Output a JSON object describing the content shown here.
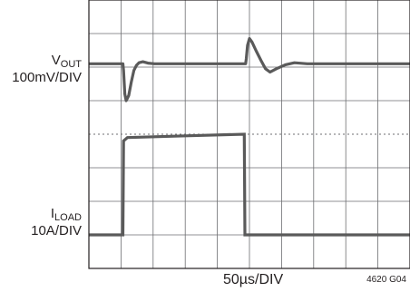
{
  "chart_data": {
    "type": "line",
    "title": "",
    "xlabel": "50µs/DIV",
    "figure_id": "4620 G04",
    "x_divisions": 10,
    "y_divisions": 8,
    "grid": true,
    "x_unit": "µs",
    "time_per_div_us": 50,
    "x_range_us": [
      0,
      500
    ],
    "channels": [
      {
        "name": "V",
        "subscript": "OUT",
        "scale": "100mV/DIV",
        "ac_coupled": true,
        "points_us_mV": [
          [
            0,
            0
          ],
          [
            53,
            0
          ],
          [
            54,
            -20
          ],
          [
            56,
            -90
          ],
          [
            58,
            -110
          ],
          [
            62,
            -95
          ],
          [
            66,
            -55
          ],
          [
            70,
            -20
          ],
          [
            74,
            -5
          ],
          [
            78,
            3
          ],
          [
            84,
            6
          ],
          [
            92,
            2
          ],
          [
            102,
            0
          ],
          [
            150,
            0
          ],
          [
            244,
            0
          ],
          [
            245,
            15
          ],
          [
            247,
            55
          ],
          [
            250,
            75
          ],
          [
            254,
            65
          ],
          [
            260,
            40
          ],
          [
            268,
            10
          ],
          [
            275,
            -15
          ],
          [
            282,
            -25
          ],
          [
            292,
            -15
          ],
          [
            306,
            -3
          ],
          [
            320,
            3
          ],
          [
            340,
            0
          ],
          [
            500,
            0
          ]
        ]
      },
      {
        "name": "I",
        "subscript": "LOAD",
        "scale": "10A/DIV",
        "points_us_A": [
          [
            0,
            0
          ],
          [
            53,
            0
          ],
          [
            54,
            28
          ],
          [
            60,
            29
          ],
          [
            150,
            29.5
          ],
          [
            242,
            30
          ],
          [
            243,
            0
          ],
          [
            500,
            0
          ]
        ]
      }
    ]
  },
  "labels": {
    "vout_name": "V",
    "vout_sub": "OUT",
    "vout_scale": "100mV/DIV",
    "iload_name": "I",
    "iload_sub": "LOAD",
    "iload_scale": "10A/DIV",
    "timebase": "50µs/DIV",
    "figure_id": "4620 G04"
  },
  "colors": {
    "trace": "#5a5a5a",
    "grid": "#6d6e71",
    "frame": "#231f20",
    "text": "#231f20"
  }
}
